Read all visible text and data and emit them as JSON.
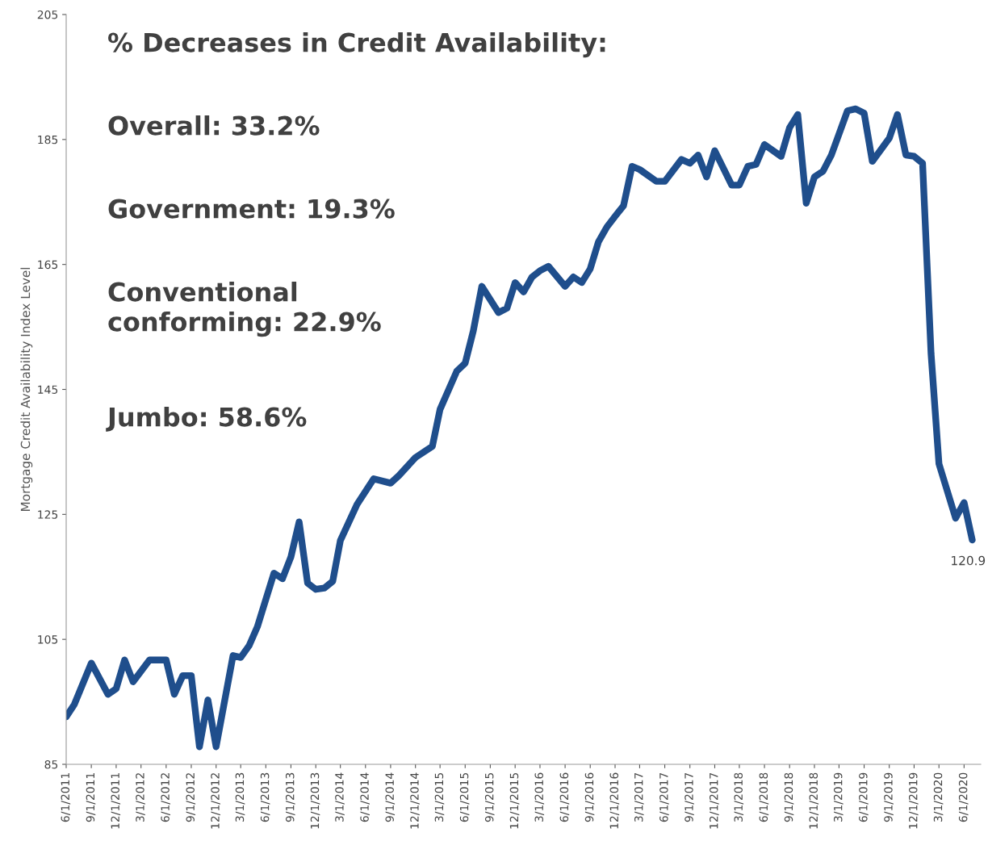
{
  "chart_data": {
    "type": "line",
    "ylabel": "Mortgage Credit Availability Index Level",
    "annotations": [
      "% Decreases in Credit Availability:",
      "Overall: 33.2%",
      "Government: 19.3%",
      "Conventional\nconforming: 22.9%",
      "Jumbo: 58.6%",
      {
        "text": "120.9",
        "x": "2020-07",
        "y": 120.9
      }
    ],
    "series": [
      {
        "color": "#1f4e8c",
        "x": [
          "2011-06",
          "2011-07",
          "2011-09",
          "2011-11",
          "2011-12",
          "2012-01",
          "2012-02",
          "2012-04",
          "2012-06",
          "2012-07",
          "2012-08",
          "2012-09",
          "2012-10",
          "2012-11",
          "2012-12",
          "2013-02",
          "2013-03",
          "2013-04",
          "2013-05",
          "2013-07",
          "2013-08",
          "2013-09",
          "2013-10",
          "2013-11",
          "2013-12",
          "2014-01",
          "2014-02",
          "2014-03",
          "2014-05",
          "2014-07",
          "2014-09",
          "2014-10",
          "2014-12",
          "2015-02",
          "2015-03",
          "2015-05",
          "2015-06",
          "2015-07",
          "2015-08",
          "2015-10",
          "2015-11",
          "2015-12",
          "2016-01",
          "2016-02",
          "2016-03",
          "2016-04",
          "2016-06",
          "2016-07",
          "2016-08",
          "2016-09",
          "2016-10",
          "2016-11",
          "2016-12",
          "2017-01",
          "2017-02",
          "2017-03",
          "2017-05",
          "2017-06",
          "2017-08",
          "2017-09",
          "2017-10",
          "2017-11",
          "2017-12",
          "2018-02",
          "2018-03",
          "2018-04",
          "2018-05",
          "2018-06",
          "2018-08",
          "2018-09",
          "2018-10",
          "2018-11",
          "2018-12",
          "2019-01",
          "2019-02",
          "2019-04",
          "2019-05",
          "2019-06",
          "2019-07",
          "2019-09",
          "2019-10",
          "2019-11",
          "2019-12",
          "2020-01",
          "2020-02",
          "2020-03",
          "2020-05",
          "2020-06",
          "2020-07"
        ],
        "values": [
          92.6,
          94.6,
          101.2,
          96.2,
          97.1,
          101.7,
          98.2,
          101.7,
          101.7,
          96.2,
          99.2,
          99.2,
          87.8,
          95.3,
          87.8,
          102.4,
          102.1,
          104.0,
          107.0,
          115.6,
          114.7,
          118.2,
          123.8,
          114.0,
          113.0,
          113.2,
          114.3,
          120.8,
          126.6,
          130.7,
          130.0,
          131.2,
          134.1,
          135.9,
          141.8,
          147.9,
          149.2,
          154.4,
          161.5,
          157.3,
          158.0,
          162.1,
          160.6,
          163.0,
          164.0,
          164.7,
          161.5,
          163.0,
          162.1,
          164.3,
          168.6,
          171.0,
          172.7,
          174.4,
          180.7,
          180.2,
          178.3,
          178.3,
          181.8,
          181.2,
          182.5,
          179.0,
          183.2,
          177.7,
          177.7,
          180.7,
          181.0,
          184.2,
          182.3,
          186.9,
          189.0,
          174.8,
          179.0,
          179.9,
          182.5,
          189.6,
          189.9,
          189.2,
          181.5,
          185.2,
          189.0,
          182.5,
          182.3,
          181.2,
          150.8,
          133.1,
          124.4,
          126.9,
          120.9
        ]
      }
    ],
    "ylim": [
      85,
      205
    ],
    "yticks": [
      85,
      105,
      125,
      145,
      165,
      185,
      205
    ],
    "xlim": [
      "2011-06",
      "2020-08"
    ],
    "xticks": [
      {
        "value": "2011-06",
        "label": "6/1/2011"
      },
      {
        "value": "2011-09",
        "label": "9/1/2011"
      },
      {
        "value": "2011-12",
        "label": "12/1/2011"
      },
      {
        "value": "2012-03",
        "label": "3/1/2012"
      },
      {
        "value": "2012-06",
        "label": "6/1/2012"
      },
      {
        "value": "2012-09",
        "label": "9/1/2012"
      },
      {
        "value": "2012-12",
        "label": "12/1/2012"
      },
      {
        "value": "2013-03",
        "label": "3/1/2013"
      },
      {
        "value": "2013-06",
        "label": "6/1/2013"
      },
      {
        "value": "2013-09",
        "label": "9/1/2013"
      },
      {
        "value": "2013-12",
        "label": "12/1/2013"
      },
      {
        "value": "2014-03",
        "label": "3/1/2014"
      },
      {
        "value": "2014-06",
        "label": "6/1/2014"
      },
      {
        "value": "2014-09",
        "label": "9/1/2014"
      },
      {
        "value": "2014-12",
        "label": "12/1/2014"
      },
      {
        "value": "2015-03",
        "label": "3/1/2015"
      },
      {
        "value": "2015-06",
        "label": "6/1/2015"
      },
      {
        "value": "2015-09",
        "label": "9/1/2015"
      },
      {
        "value": "2015-12",
        "label": "12/1/2015"
      },
      {
        "value": "2016-03",
        "label": "3/1/2016"
      },
      {
        "value": "2016-06",
        "label": "6/1/2016"
      },
      {
        "value": "2016-09",
        "label": "9/1/2016"
      },
      {
        "value": "2016-12",
        "label": "12/1/2016"
      },
      {
        "value": "2017-03",
        "label": "3/1/2017"
      },
      {
        "value": "2017-06",
        "label": "6/1/2017"
      },
      {
        "value": "2017-09",
        "label": "9/1/2017"
      },
      {
        "value": "2017-12",
        "label": "12/1/2017"
      },
      {
        "value": "2018-03",
        "label": "3/1/2018"
      },
      {
        "value": "2018-06",
        "label": "6/1/2018"
      },
      {
        "value": "2018-09",
        "label": "9/1/2018"
      },
      {
        "value": "2018-12",
        "label": "12/1/2018"
      },
      {
        "value": "2019-03",
        "label": "3/1/2019"
      },
      {
        "value": "2019-06",
        "label": "6/1/2019"
      },
      {
        "value": "2019-09",
        "label": "9/1/2019"
      },
      {
        "value": "2019-12",
        "label": "12/1/2019"
      },
      {
        "value": "2020-03",
        "label": "3/1/2020"
      },
      {
        "value": "2020-06",
        "label": "6/1/2020"
      }
    ],
    "grid": false,
    "marker": "none",
    "line_style": "solid"
  }
}
